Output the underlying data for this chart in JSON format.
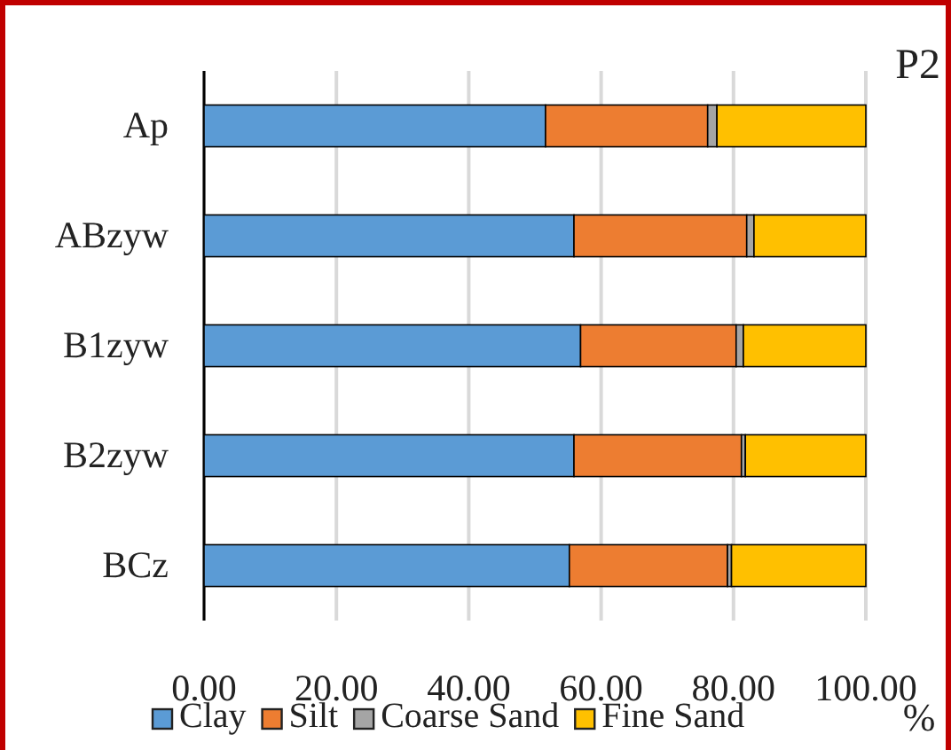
{
  "chart_data": {
    "type": "bar",
    "orientation": "horizontal",
    "stacked": true,
    "categories": [
      "Ap",
      "ABzyw",
      "B1zyw",
      "B2zyw",
      "BCz"
    ],
    "series": [
      {
        "name": "Clay",
        "color": "#5b9bd5",
        "values": [
          51.6,
          55.9,
          56.9,
          55.9,
          55.2
        ]
      },
      {
        "name": "Silt",
        "color": "#ed7d31",
        "values": [
          24.5,
          26.1,
          23.5,
          25.3,
          23.9
        ]
      },
      {
        "name": "Coarse Sand",
        "color": "#a5a5a5",
        "values": [
          1.4,
          1.1,
          1.1,
          0.6,
          0.6
        ]
      },
      {
        "name": "Fine Sand",
        "color": "#ffc000",
        "values": [
          22.5,
          16.9,
          18.5,
          18.2,
          20.3
        ]
      }
    ],
    "xlim": [
      0,
      100
    ],
    "xticks": [
      {
        "value": 0,
        "label": "0.00"
      },
      {
        "value": 20,
        "label": "20.00"
      },
      {
        "value": 40,
        "label": "40.00"
      },
      {
        "value": 60,
        "label": "60.00"
      },
      {
        "value": 80,
        "label": "80.00"
      },
      {
        "value": 100,
        "label": "100.00"
      }
    ],
    "xlabel": "%",
    "annotations": [
      "P2"
    ],
    "grid": "x",
    "legend": "bottom"
  }
}
